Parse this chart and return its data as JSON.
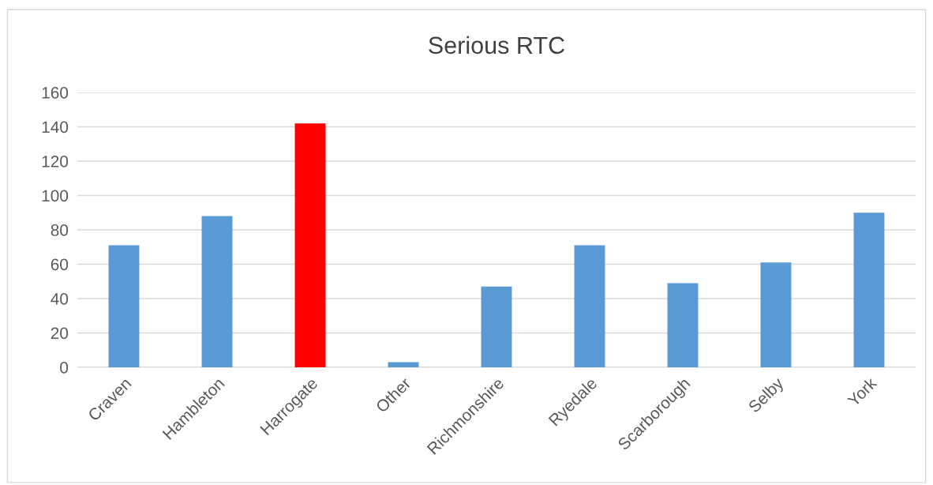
{
  "chart_data": {
    "type": "bar",
    "title": "Serious RTC",
    "categories": [
      "Craven",
      "Hambleton",
      "Harrogate",
      "Other",
      "Richmonshire",
      "Ryedale",
      "Scarborough",
      "Selby",
      "York"
    ],
    "values": [
      71,
      88,
      142,
      3,
      47,
      71,
      49,
      61,
      90
    ],
    "colors": [
      "#5b9bd5",
      "#5b9bd5",
      "#ff0000",
      "#5b9bd5",
      "#5b9bd5",
      "#5b9bd5",
      "#5b9bd5",
      "#5b9bd5",
      "#5b9bd5"
    ],
    "ylim": [
      0,
      160
    ],
    "yticks": [
      0,
      20,
      40,
      60,
      80,
      100,
      120,
      140,
      160
    ],
    "grid": "y"
  }
}
